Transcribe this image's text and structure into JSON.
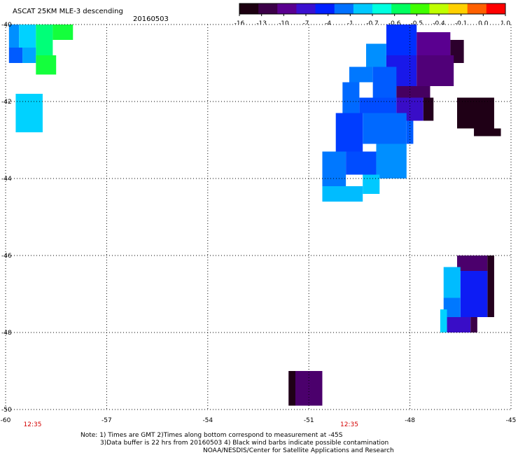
{
  "header": {
    "title": "ASCAT 25KM MLE-3 descending",
    "date": "20160503"
  },
  "colorbar": {
    "tick_labels": [
      "-16",
      "-13",
      "-10",
      "-7",
      "-4",
      "-1",
      "-0.7",
      "-0.6",
      "-0.5",
      "-0.4",
      "-0.1",
      "0.0",
      "1.0"
    ],
    "colors": [
      "#1c0010",
      "#3c0048",
      "#5a0090",
      "#3a10d0",
      "#0020ff",
      "#0070ff",
      "#00c8ff",
      "#00ffe0",
      "#00ff60",
      "#40ff00",
      "#c0ff00",
      "#ffd000",
      "#ff6000",
      "#ff0000"
    ]
  },
  "chart_data": {
    "type": "heatmap",
    "title": "ASCAT 25KM MLE-3 descending",
    "subtitle": "20160503",
    "x_ticks": [
      "-60",
      "-57",
      "-54",
      "-51",
      "-48",
      "-45"
    ],
    "y_ticks": [
      "-40",
      "-42",
      "-44",
      "-46",
      "-48",
      "-50"
    ],
    "xlim": [
      -60,
      -45
    ],
    "ylim": [
      -50,
      -40
    ],
    "grid": true,
    "time_labels": [
      {
        "x": -59.2,
        "text": "12:35"
      },
      {
        "x": -49.8,
        "text": "12:35"
      }
    ],
    "cells": [
      {
        "lon0": -59.9,
        "lon1": -59.6,
        "lat0": -40.6,
        "lat1": -40.0,
        "value": -2.5
      },
      {
        "lon0": -59.6,
        "lon1": -59.1,
        "lat0": -40.6,
        "lat1": -40.0,
        "value": -1.0
      },
      {
        "lon0": -59.1,
        "lon1": -58.6,
        "lat0": -40.8,
        "lat1": -40.0,
        "value": -0.6
      },
      {
        "lon0": -58.6,
        "lon1": -58.0,
        "lat0": -40.4,
        "lat1": -40.0,
        "value": -0.55
      },
      {
        "lon0": -59.9,
        "lon1": -59.5,
        "lat0": -41.0,
        "lat1": -40.6,
        "value": -4.0
      },
      {
        "lon0": -59.5,
        "lon1": -59.1,
        "lat0": -41.0,
        "lat1": -40.6,
        "value": -2.0
      },
      {
        "lon0": -59.1,
        "lon1": -58.5,
        "lat0": -41.3,
        "lat1": -40.8,
        "value": -0.55
      },
      {
        "lon0": -59.7,
        "lon1": -58.9,
        "lat0": -42.8,
        "lat1": -41.8,
        "value": -1.0
      },
      {
        "lon0": -48.7,
        "lon1": -47.8,
        "lat0": -40.8,
        "lat1": -40.0,
        "value": -5.5
      },
      {
        "lon0": -47.8,
        "lon1": -46.8,
        "lat0": -40.8,
        "lat1": -40.2,
        "value": -11.0
      },
      {
        "lon0": -46.8,
        "lon1": -46.4,
        "lat0": -41.0,
        "lat1": -40.4,
        "value": -15.0
      },
      {
        "lon0": -49.3,
        "lon1": -48.7,
        "lat0": -41.1,
        "lat1": -40.5,
        "value": -2.5
      },
      {
        "lon0": -48.7,
        "lon1": -47.8,
        "lat0": -41.6,
        "lat1": -40.8,
        "value": -7.0
      },
      {
        "lon0": -47.8,
        "lon1": -46.7,
        "lat0": -41.6,
        "lat1": -40.8,
        "value": -12.0
      },
      {
        "lon0": -49.8,
        "lon1": -49.1,
        "lat0": -41.5,
        "lat1": -41.1,
        "value": -3.0
      },
      {
        "lon0": -49.1,
        "lon1": -48.4,
        "lat0": -41.9,
        "lat1": -41.1,
        "value": -4.0
      },
      {
        "lon0": -48.4,
        "lon1": -47.4,
        "lat0": -41.9,
        "lat1": -41.6,
        "value": -13.0
      },
      {
        "lon0": -50.0,
        "lon1": -49.5,
        "lat0": -42.3,
        "lat1": -41.5,
        "value": -3.5
      },
      {
        "lon0": -49.5,
        "lon1": -48.4,
        "lat0": -42.3,
        "lat1": -41.9,
        "value": -4.5
      },
      {
        "lon0": -48.4,
        "lon1": -47.6,
        "lat0": -42.5,
        "lat1": -41.9,
        "value": -8.5
      },
      {
        "lon0": -47.6,
        "lon1": -47.3,
        "lat0": -42.5,
        "lat1": -41.9,
        "value": -15.5
      },
      {
        "lon0": -46.6,
        "lon1": -45.5,
        "lat0": -42.7,
        "lat1": -41.9,
        "value": -15.8
      },
      {
        "lon0": -46.1,
        "lon1": -45.3,
        "lat0": -42.9,
        "lat1": -42.7,
        "value": -15.8
      },
      {
        "lon0": -50.2,
        "lon1": -49.4,
        "lat0": -43.3,
        "lat1": -42.3,
        "value": -5.0
      },
      {
        "lon0": -49.4,
        "lon1": -48.1,
        "lat0": -43.1,
        "lat1": -42.3,
        "value": -3.5
      },
      {
        "lon0": -48.1,
        "lon1": -47.9,
        "lat0": -43.1,
        "lat1": -42.5,
        "value": -4.0
      },
      {
        "lon0": -50.6,
        "lon1": -49.9,
        "lat0": -44.2,
        "lat1": -43.3,
        "value": -3.0
      },
      {
        "lon0": -49.9,
        "lon1": -49.0,
        "lat0": -43.9,
        "lat1": -43.3,
        "value": -4.5
      },
      {
        "lon0": -49.0,
        "lon1": -48.1,
        "lat0": -44.0,
        "lat1": -43.1,
        "value": -2.5
      },
      {
        "lon0": -50.6,
        "lon1": -49.4,
        "lat0": -44.6,
        "lat1": -44.2,
        "value": -1.5
      },
      {
        "lon0": -49.4,
        "lon1": -48.9,
        "lat0": -44.4,
        "lat1": -43.9,
        "value": -1.2
      },
      {
        "lon0": -46.6,
        "lon1": -45.7,
        "lat0": -46.4,
        "lat1": -46.0,
        "value": -12.5
      },
      {
        "lon0": -45.7,
        "lon1": -45.5,
        "lat0": -47.6,
        "lat1": -46.0,
        "value": -15.5
      },
      {
        "lon0": -47.0,
        "lon1": -46.5,
        "lat0": -47.1,
        "lat1": -46.3,
        "value": -1.5
      },
      {
        "lon0": -46.5,
        "lon1": -45.7,
        "lat0": -47.6,
        "lat1": -46.4,
        "value": -6.5
      },
      {
        "lon0": -47.0,
        "lon1": -46.5,
        "lat0": -47.6,
        "lat1": -47.1,
        "value": -3.0
      },
      {
        "lon0": -47.1,
        "lon1": -46.9,
        "lat0": -48.0,
        "lat1": -47.4,
        "value": -1.0
      },
      {
        "lon0": -46.9,
        "lon1": -46.2,
        "lat0": -48.0,
        "lat1": -47.6,
        "value": -8.5
      },
      {
        "lon0": -46.2,
        "lon1": -46.0,
        "lat0": -48.0,
        "lat1": -47.6,
        "value": -14.0
      },
      {
        "lon0": -51.6,
        "lon1": -50.6,
        "lat0": -49.9,
        "lat1": -49.0,
        "value": -12.5
      },
      {
        "lon0": -51.6,
        "lon1": -51.4,
        "lat0": -49.9,
        "lat1": -49.0,
        "value": -15.8
      }
    ]
  },
  "notes": {
    "line1": "Note: 1) Times are GMT 2)Times along bottom correspond to measurement at -45S",
    "line2": "3)Data buffer is 22 hrs from 20160503 4) Black wind barbs indicate possible contamination",
    "line3": "NOAA/NESDIS/Center for Satellite Applications and Research"
  }
}
